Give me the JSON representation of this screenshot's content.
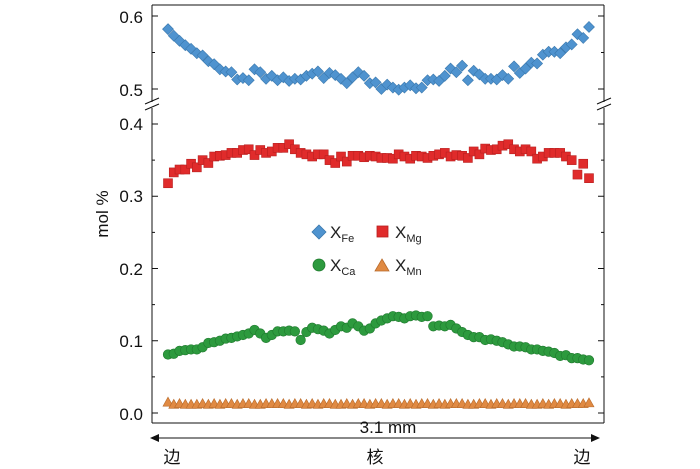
{
  "chart_data": {
    "type": "scatter",
    "ylabel": "mol %",
    "xlabel": "3.1 mm",
    "x_positions": {
      "left": "边",
      "center": "核",
      "right": "边"
    },
    "y_ticks_upper": [
      "0.6",
      "0.5"
    ],
    "y_ticks_lower": [
      "0.4",
      "0.3",
      "0.2",
      "0.1",
      "0.0"
    ],
    "ylim_upper": [
      0.48,
      0.62
    ],
    "ylim_lower": [
      0.0,
      0.41
    ],
    "xlim": [
      0,
      1
    ],
    "broken_axis": true,
    "legend_placement": "center",
    "series": [
      {
        "name": "X",
        "sub": "Fe",
        "marker": "diamond",
        "color": "#4f93cf",
        "values": [
          0.582,
          0.573,
          0.566,
          0.56,
          0.555,
          0.549,
          0.546,
          0.538,
          0.534,
          0.527,
          0.524,
          0.523,
          0.513,
          0.515,
          0.512,
          0.527,
          0.523,
          0.514,
          0.518,
          0.512,
          0.516,
          0.511,
          0.514,
          0.513,
          0.518,
          0.521,
          0.524,
          0.515,
          0.522,
          0.519,
          0.514,
          0.508,
          0.516,
          0.523,
          0.518,
          0.508,
          0.509,
          0.5,
          0.506,
          0.502,
          0.499,
          0.502,
          0.505,
          0.501,
          0.502,
          0.512,
          0.513,
          0.511,
          0.518,
          0.528,
          0.523,
          0.532,
          0.512,
          0.525,
          0.52,
          0.514,
          0.514,
          0.513,
          0.519,
          0.514,
          0.531,
          0.522,
          0.528,
          0.536,
          0.535,
          0.547,
          0.551,
          0.551,
          0.549,
          0.557,
          0.561,
          0.575,
          0.57,
          0.585
        ]
      },
      {
        "name": "X",
        "sub": "Mg",
        "marker": "square",
        "color": "#e02b2b",
        "values": [
          0.318,
          0.333,
          0.337,
          0.337,
          0.345,
          0.34,
          0.35,
          0.346,
          0.355,
          0.356,
          0.357,
          0.36,
          0.36,
          0.364,
          0.365,
          0.357,
          0.364,
          0.36,
          0.362,
          0.367,
          0.367,
          0.372,
          0.365,
          0.36,
          0.358,
          0.355,
          0.358,
          0.358,
          0.35,
          0.346,
          0.355,
          0.348,
          0.356,
          0.356,
          0.354,
          0.356,
          0.355,
          0.353,
          0.353,
          0.352,
          0.358,
          0.355,
          0.352,
          0.356,
          0.355,
          0.353,
          0.356,
          0.358,
          0.36,
          0.355,
          0.357,
          0.356,
          0.353,
          0.362,
          0.358,
          0.366,
          0.364,
          0.365,
          0.37,
          0.372,
          0.365,
          0.362,
          0.365,
          0.362,
          0.352,
          0.355,
          0.36,
          0.36,
          0.36,
          0.355,
          0.35,
          0.33,
          0.345,
          0.325
        ]
      },
      {
        "name": "X",
        "sub": "Ca",
        "marker": "circle",
        "color": "#2d9a3e",
        "values": [
          0.081,
          0.082,
          0.086,
          0.087,
          0.088,
          0.088,
          0.091,
          0.097,
          0.098,
          0.1,
          0.103,
          0.104,
          0.106,
          0.108,
          0.11,
          0.115,
          0.11,
          0.104,
          0.108,
          0.113,
          0.113,
          0.114,
          0.113,
          0.101,
          0.112,
          0.118,
          0.116,
          0.114,
          0.11,
          0.115,
          0.12,
          0.118,
          0.124,
          0.12,
          0.114,
          0.117,
          0.124,
          0.128,
          0.131,
          0.134,
          0.133,
          0.131,
          0.134,
          0.135,
          0.133,
          0.134,
          0.12,
          0.121,
          0.12,
          0.122,
          0.117,
          0.112,
          0.108,
          0.105,
          0.105,
          0.101,
          0.102,
          0.1,
          0.098,
          0.095,
          0.092,
          0.092,
          0.091,
          0.088,
          0.088,
          0.086,
          0.085,
          0.083,
          0.079,
          0.08,
          0.076,
          0.076,
          0.074,
          0.073
        ]
      },
      {
        "name": "X",
        "sub": "Mn",
        "marker": "triangle",
        "color": "#e08a43",
        "values": [
          0.015,
          0.012,
          0.013,
          0.012,
          0.012,
          0.012,
          0.013,
          0.012,
          0.013,
          0.012,
          0.013,
          0.013,
          0.012,
          0.013,
          0.013,
          0.012,
          0.012,
          0.013,
          0.013,
          0.013,
          0.013,
          0.012,
          0.013,
          0.013,
          0.012,
          0.013,
          0.012,
          0.013,
          0.013,
          0.012,
          0.012,
          0.013,
          0.012,
          0.013,
          0.013,
          0.012,
          0.013,
          0.013,
          0.012,
          0.013,
          0.013,
          0.012,
          0.013,
          0.012,
          0.013,
          0.013,
          0.012,
          0.013,
          0.012,
          0.013,
          0.013,
          0.013,
          0.012,
          0.012,
          0.013,
          0.013,
          0.012,
          0.013,
          0.013,
          0.012,
          0.013,
          0.013,
          0.013,
          0.012,
          0.012,
          0.013,
          0.012,
          0.013,
          0.013,
          0.012,
          0.013,
          0.013,
          0.013,
          0.014
        ]
      }
    ]
  }
}
